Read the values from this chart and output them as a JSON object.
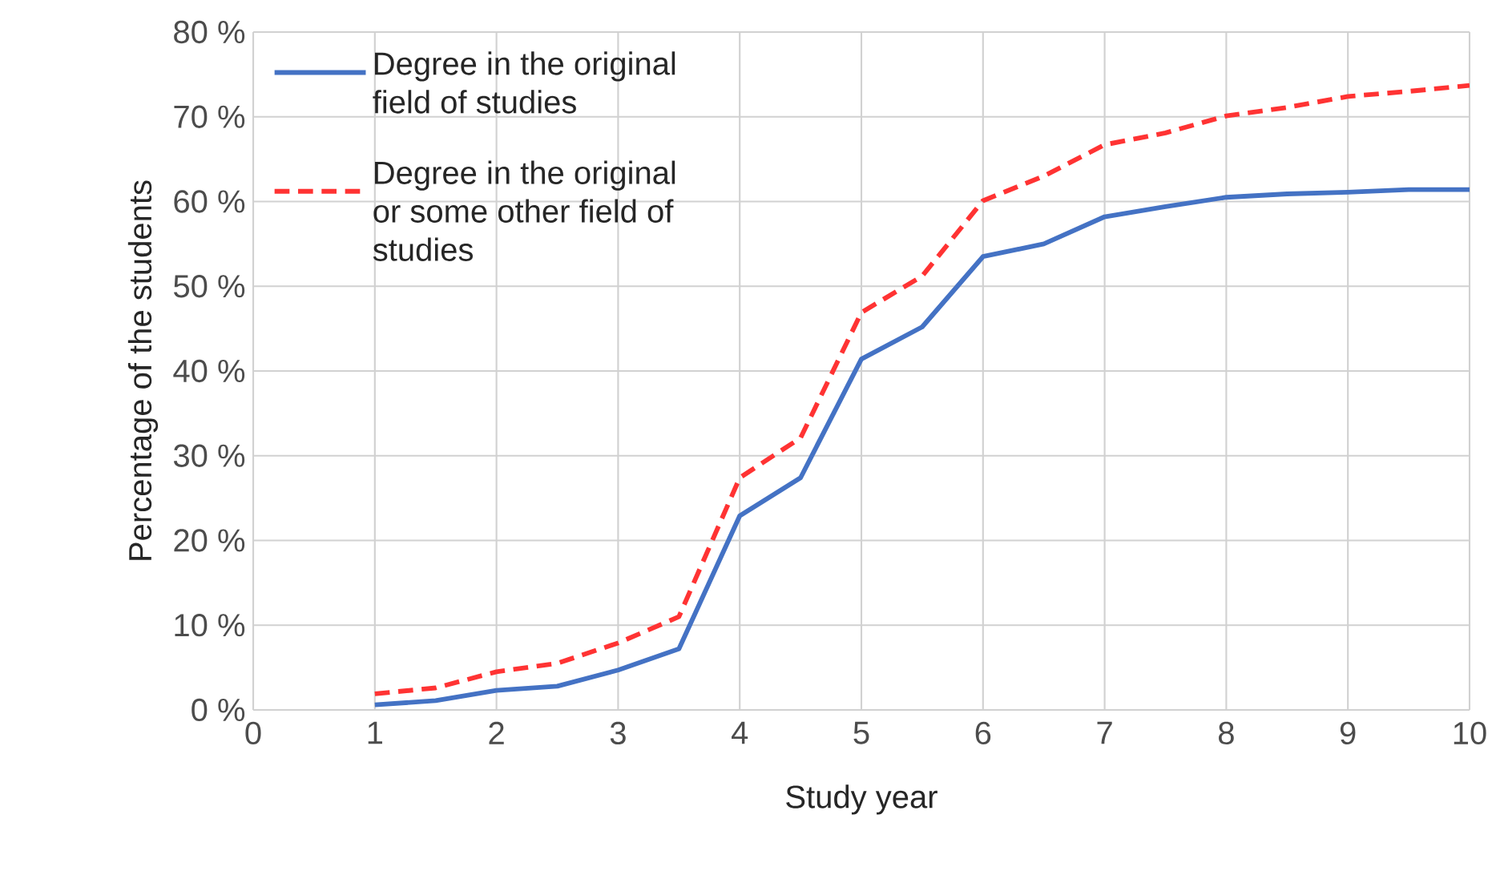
{
  "chart_data": {
    "type": "line",
    "xlabel": "Study year",
    "ylabel": "Percentage of the students",
    "x": [
      1,
      1.5,
      2,
      2.5,
      3,
      3.5,
      4,
      4.5,
      5,
      5.5,
      6,
      6.5,
      7,
      7.5,
      8,
      8.5,
      9,
      9.5,
      10
    ],
    "series": [
      {
        "name": "Degree in the original field of studies",
        "color": "#4472c4",
        "line_style": "solid",
        "values": [
          0.6,
          1.1,
          2.3,
          2.8,
          4.7,
          7.2,
          22.9,
          27.4,
          41.4,
          45.2,
          53.5,
          55.0,
          58.2,
          59.4,
          60.5,
          60.9,
          61.1,
          61.4,
          61.4
        ]
      },
      {
        "name": "Degree in the original or some other field of studies",
        "color": "#ff3333",
        "line_style": "dashed",
        "values": [
          1.9,
          2.6,
          4.5,
          5.5,
          7.9,
          11.0,
          27.4,
          32.1,
          46.9,
          51.2,
          60.1,
          63.0,
          66.7,
          68.1,
          70.1,
          71.1,
          72.4,
          73.0,
          73.7
        ]
      }
    ],
    "xlim": [
      0,
      10
    ],
    "xticks": [
      0,
      1,
      2,
      3,
      4,
      5,
      6,
      7,
      8,
      9,
      10
    ],
    "ylim": [
      0,
      80
    ],
    "yticks": [
      {
        "value": 0,
        "label": "0 %"
      },
      {
        "value": 10,
        "label": "10 %"
      },
      {
        "value": 20,
        "label": "20 %"
      },
      {
        "value": 30,
        "label": "30 %"
      },
      {
        "value": 40,
        "label": "40 %"
      },
      {
        "value": 50,
        "label": "50 %"
      },
      {
        "value": 60,
        "label": "60 %"
      },
      {
        "value": 70,
        "label": "70 %"
      },
      {
        "value": 80,
        "label": "80 %"
      }
    ],
    "grid": true,
    "legend": "top left",
    "marker": "none"
  }
}
